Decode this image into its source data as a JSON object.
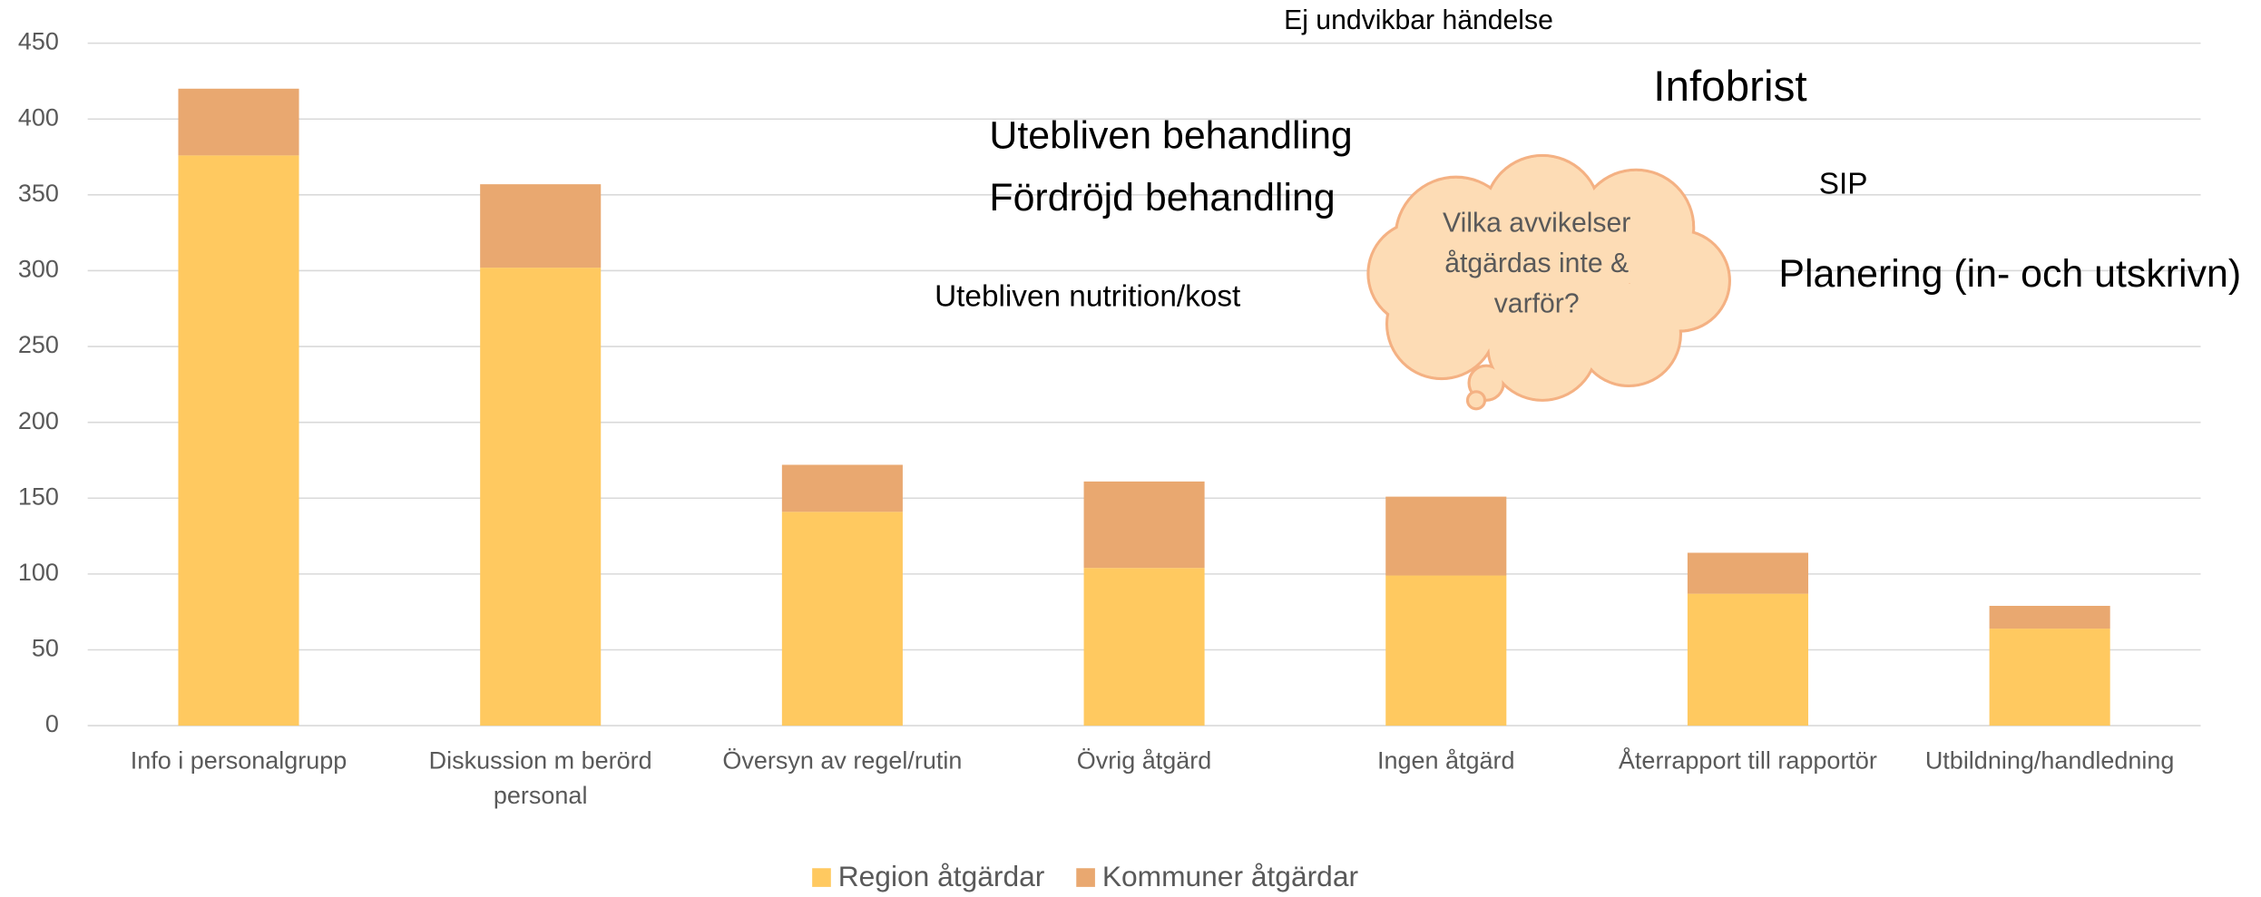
{
  "chart_data": {
    "type": "stacked_bar",
    "categories": [
      "Info i personalgrupp",
      "Diskussion m berörd personal",
      "Översyn av regel/rutin",
      "Övrig åtgärd",
      "Ingen åtgärd",
      "Återrapport till rapportör",
      "Utbildning/handledning"
    ],
    "series": [
      {
        "name": "Region åtgärdar",
        "color": "#ffc960",
        "values": [
          376,
          302,
          141,
          104,
          99,
          87,
          64
        ]
      },
      {
        "name": "Kommuner åtgärdar",
        "color": "#e9a870",
        "values": [
          44,
          55,
          31,
          57,
          52,
          27,
          15
        ]
      }
    ],
    "ylim": [
      0,
      450
    ],
    "yticks": [
      0,
      50,
      100,
      150,
      200,
      250,
      300,
      350,
      400,
      450
    ],
    "grid": true,
    "legend": "bottom",
    "annotations": [
      "Ej undvikbar händelse",
      "Infobrist",
      "Utebliven behandling",
      "Fördröjd behandling",
      "SIP",
      "Planering (in- och utskrivn)",
      "Utebliven nutrition/kost"
    ],
    "callout": "Vilka avvikelser åtgärdas inte & varför?"
  }
}
